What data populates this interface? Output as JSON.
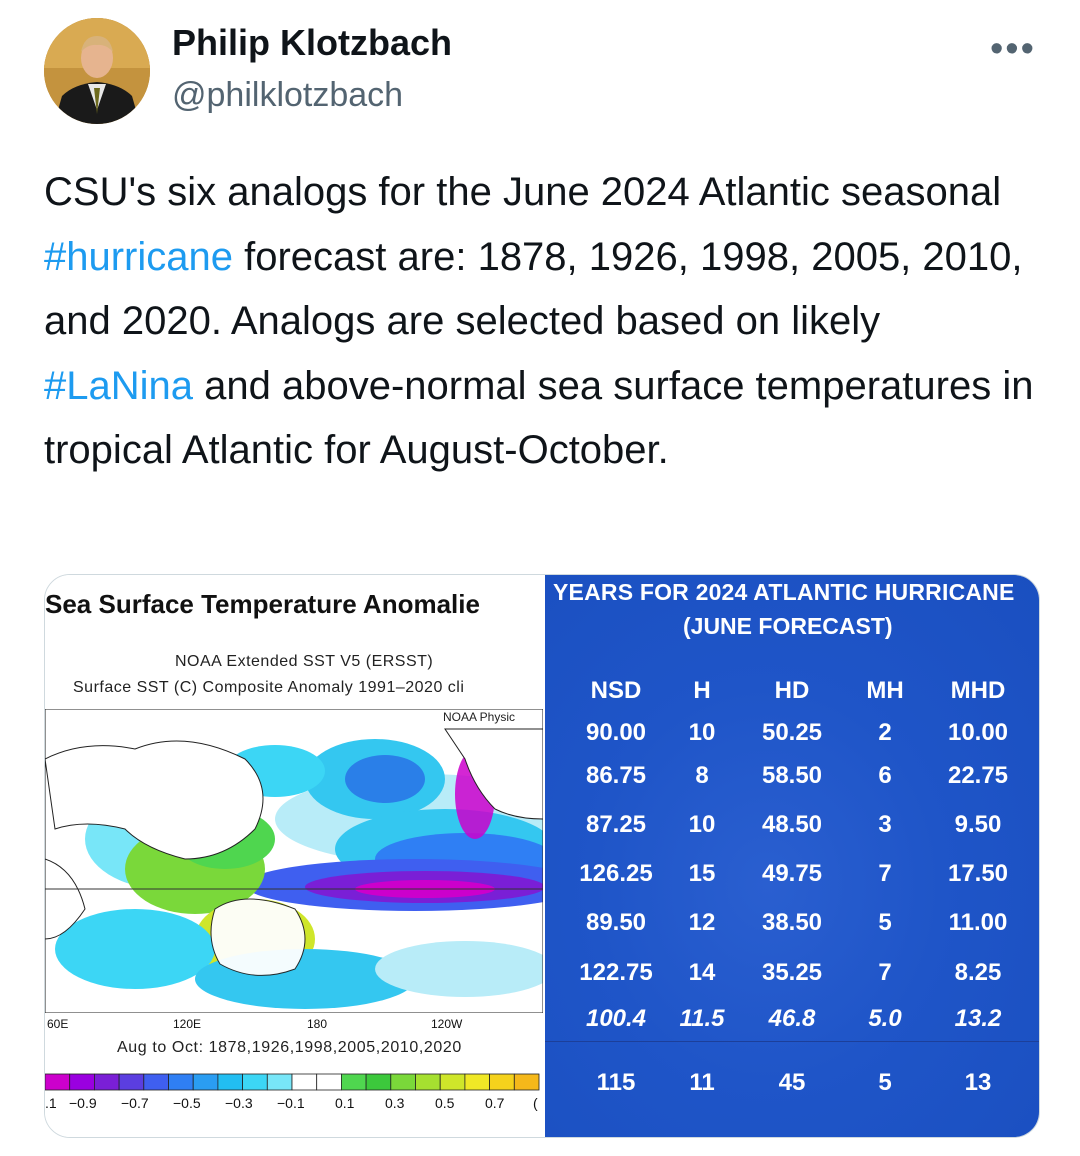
{
  "author": {
    "name": "Philip Klotzbach",
    "handle": "@philklotzbach"
  },
  "more_label": "•••",
  "tweet": {
    "part1": "CSU's six analogs for the June 2024 Atlantic seasonal ",
    "hashtag1": "#hurricane",
    "part2": " forecast are: 1878, 1926, 1998, 2005, 2010, and 2020. Analogs are selected based on likely ",
    "hashtag2": "#LaNina",
    "part3": " and above-normal sea surface temperatures in tropical Atlantic for August-October."
  },
  "sst_image": {
    "title": "Sea Surface Temperature Anomalie",
    "subtitle1": "NOAA Extended SST V5 (ERSST)",
    "subtitle2": "Surface SST (C) Composite Anomaly 1991–2020 cli",
    "watermark": "NOAA Physic",
    "lon_labels": [
      "60E",
      "120E",
      "180",
      "120W"
    ],
    "caption": "Aug to Oct: 1878,1926,1998,2005,2010,2020",
    "colorbar_labels": [
      ".1",
      "−0.9",
      "−0.7",
      "−0.5",
      "−0.3",
      "−0.1",
      "0.1",
      "0.3",
      "0.5",
      "0.7",
      "("
    ],
    "colorbar_colors": [
      "#cc00cc",
      "#9a00e0",
      "#7a1fd6",
      "#5b3ee0",
      "#3f5ff0",
      "#2f7ff4",
      "#2a9df2",
      "#22bef2",
      "#3cd6f5",
      "#78e6f8",
      "#ffffff",
      "#ffffff",
      "#4fd64f",
      "#3cc83c",
      "#7ad83a",
      "#a6e030",
      "#cfe62a",
      "#f0e826",
      "#f5d21c",
      "#f5b81a"
    ]
  },
  "table_image": {
    "title_line1": "YEARS FOR 2024 ATLANTIC HURRICANE",
    "title_line2": "(JUNE FORECAST)",
    "headers": [
      "NSD",
      "H",
      "HD",
      "MH",
      "MHD"
    ],
    "rows": [
      [
        "90.00",
        "10",
        "50.25",
        "2",
        "10.00"
      ],
      [
        "86.75",
        "8",
        "58.50",
        "6",
        "22.75"
      ],
      [
        "87.25",
        "10",
        "48.50",
        "3",
        "9.50"
      ],
      [
        "126.25",
        "15",
        "49.75",
        "7",
        "17.50"
      ],
      [
        "89.50",
        "12",
        "38.50",
        "5",
        "11.00"
      ],
      [
        "122.75",
        "14",
        "35.25",
        "7",
        "8.25"
      ]
    ],
    "average": [
      "100.4",
      "11.5",
      "46.8",
      "5.0",
      "13.2"
    ],
    "forecast": [
      "115",
      "11",
      "45",
      "5",
      "13"
    ]
  }
}
